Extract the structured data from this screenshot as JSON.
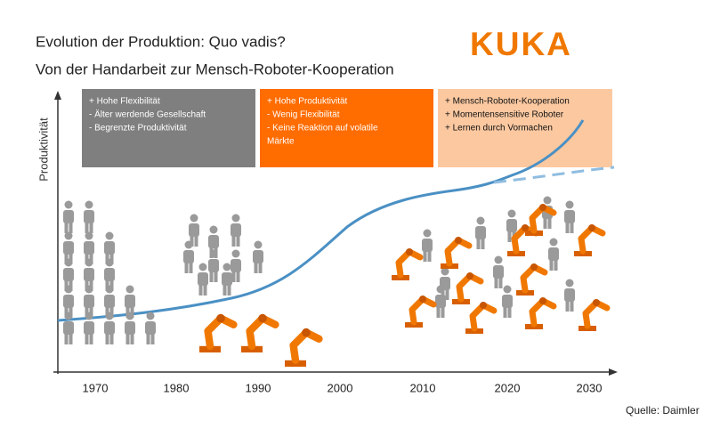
{
  "title": "Evolution der Produktion: Quo vadis?",
  "subtitle": "Von der Handarbeit zur Mensch-Roboter-Kooperation",
  "logo": "KUKA",
  "y_axis_label": "Produktivität",
  "phases": [
    {
      "lines": [
        "+ Hohe Flexibilität",
        "- Älter werdende Gesellschaft",
        "- Begrenzte Produktivität"
      ]
    },
    {
      "lines": [
        "+ Hohe Produktivität",
        "-  Wenig Flexibilität",
        "- Keine Reaktion auf volatile",
        "Märkte"
      ]
    },
    {
      "lines": [
        "+ Mensch-Roboter-Kooperation",
        "+ Momentensensitive Roboter",
        "+ Lernen durch Vormachen"
      ]
    }
  ],
  "x_axis_labels": [
    "1970",
    "1980",
    "1990",
    "2000",
    "2010",
    "2020",
    "2030"
  ],
  "source": "Quelle: Daimler"
}
